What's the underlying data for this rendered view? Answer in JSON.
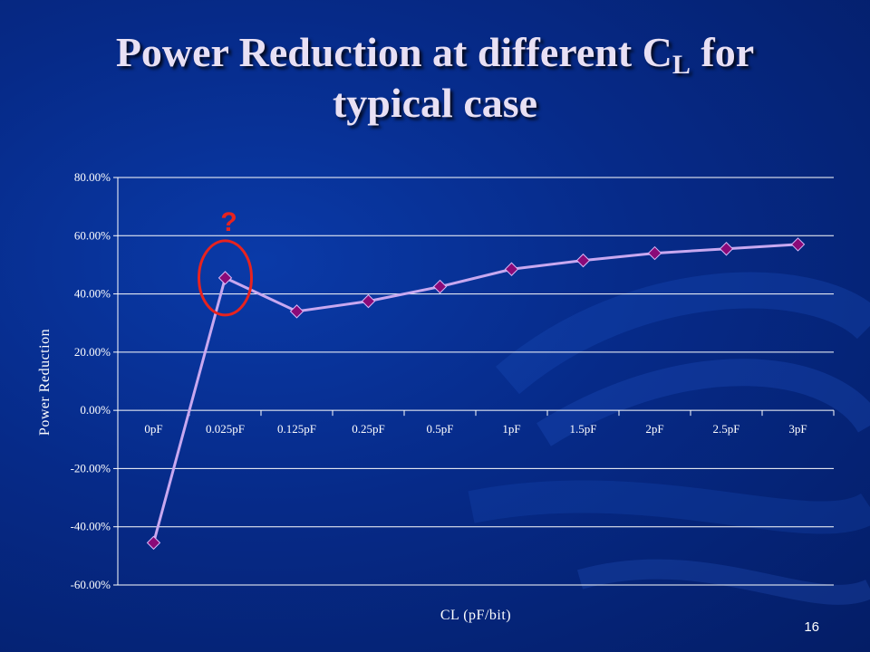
{
  "slide": {
    "title_main": "Power Reduction at different C",
    "title_sub": "L",
    "title_after": " for",
    "title_line2": "typical case",
    "slide_number": "16"
  },
  "annotation": {
    "text": "?",
    "color": "#e8231f",
    "target_category": "0.025pF"
  },
  "colors": {
    "line": "#c8a8f0",
    "marker": "#8a0a78",
    "grid": "#ffffff",
    "text": "#ffffff"
  },
  "chart_data": {
    "type": "line",
    "title": "",
    "xlabel": "CL (pF/bit)",
    "ylabel": "Power Reduction",
    "ylim": [
      -60,
      80
    ],
    "ytick_step": 20,
    "ytick_labels": [
      "80.00%",
      "60.00%",
      "40.00%",
      "20.00%",
      "0.00%",
      "-20.00%",
      "-40.00%",
      "-60.00%"
    ],
    "categories": [
      "0pF",
      "0.025pF",
      "0.125pF",
      "0.25pF",
      "0.5pF",
      "1pF",
      "1.5pF",
      "2pF",
      "2.5pF",
      "3pF"
    ],
    "series": [
      {
        "values": [
          -45.5,
          45.5,
          34.0,
          37.5,
          42.5,
          48.5,
          51.5,
          54.0,
          55.5,
          57.0
        ]
      }
    ],
    "grid": true,
    "legend": "none"
  }
}
